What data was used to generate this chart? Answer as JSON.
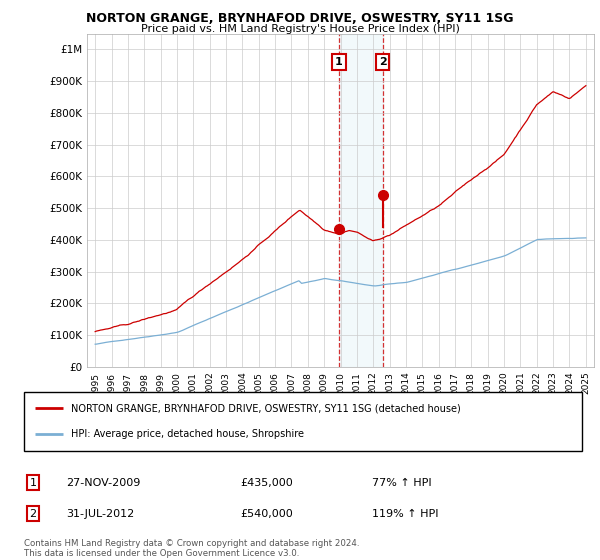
{
  "title": "NORTON GRANGE, BRYNHAFOD DRIVE, OSWESTRY, SY11 1SG",
  "subtitle": "Price paid vs. HM Land Registry's House Price Index (HPI)",
  "ylim": [
    0,
    1050000
  ],
  "yticks": [
    0,
    100000,
    200000,
    300000,
    400000,
    500000,
    600000,
    700000,
    800000,
    900000,
    1000000
  ],
  "ytick_labels": [
    "£0",
    "£100K",
    "£200K",
    "£300K",
    "£400K",
    "£500K",
    "£600K",
    "£700K",
    "£800K",
    "£900K",
    "£1M"
  ],
  "background_color": "#ffffff",
  "plot_bg_color": "#ffffff",
  "grid_color": "#cccccc",
  "red_line_color": "#cc0000",
  "blue_line_color": "#7bafd4",
  "purchase1_year": 2009.91,
  "purchase1_value": 435000,
  "purchase1_label": "1",
  "purchase2_year": 2012.58,
  "purchase2_value": 540000,
  "purchase2_label": "2",
  "shade_x1": 2009.91,
  "shade_x2": 2012.58,
  "legend_red_label": "NORTON GRANGE, BRYNHAFOD DRIVE, OSWESTRY, SY11 1SG (detached house)",
  "legend_blue_label": "HPI: Average price, detached house, Shropshire",
  "table_row1": [
    "1",
    "27-NOV-2009",
    "£435,000",
    "77% ↑ HPI"
  ],
  "table_row2": [
    "2",
    "31-JUL-2012",
    "£540,000",
    "119% ↑ HPI"
  ],
  "footnote": "Contains HM Land Registry data © Crown copyright and database right 2024.\nThis data is licensed under the Open Government Licence v3.0.",
  "xmin": 1994.5,
  "xmax": 2025.5
}
